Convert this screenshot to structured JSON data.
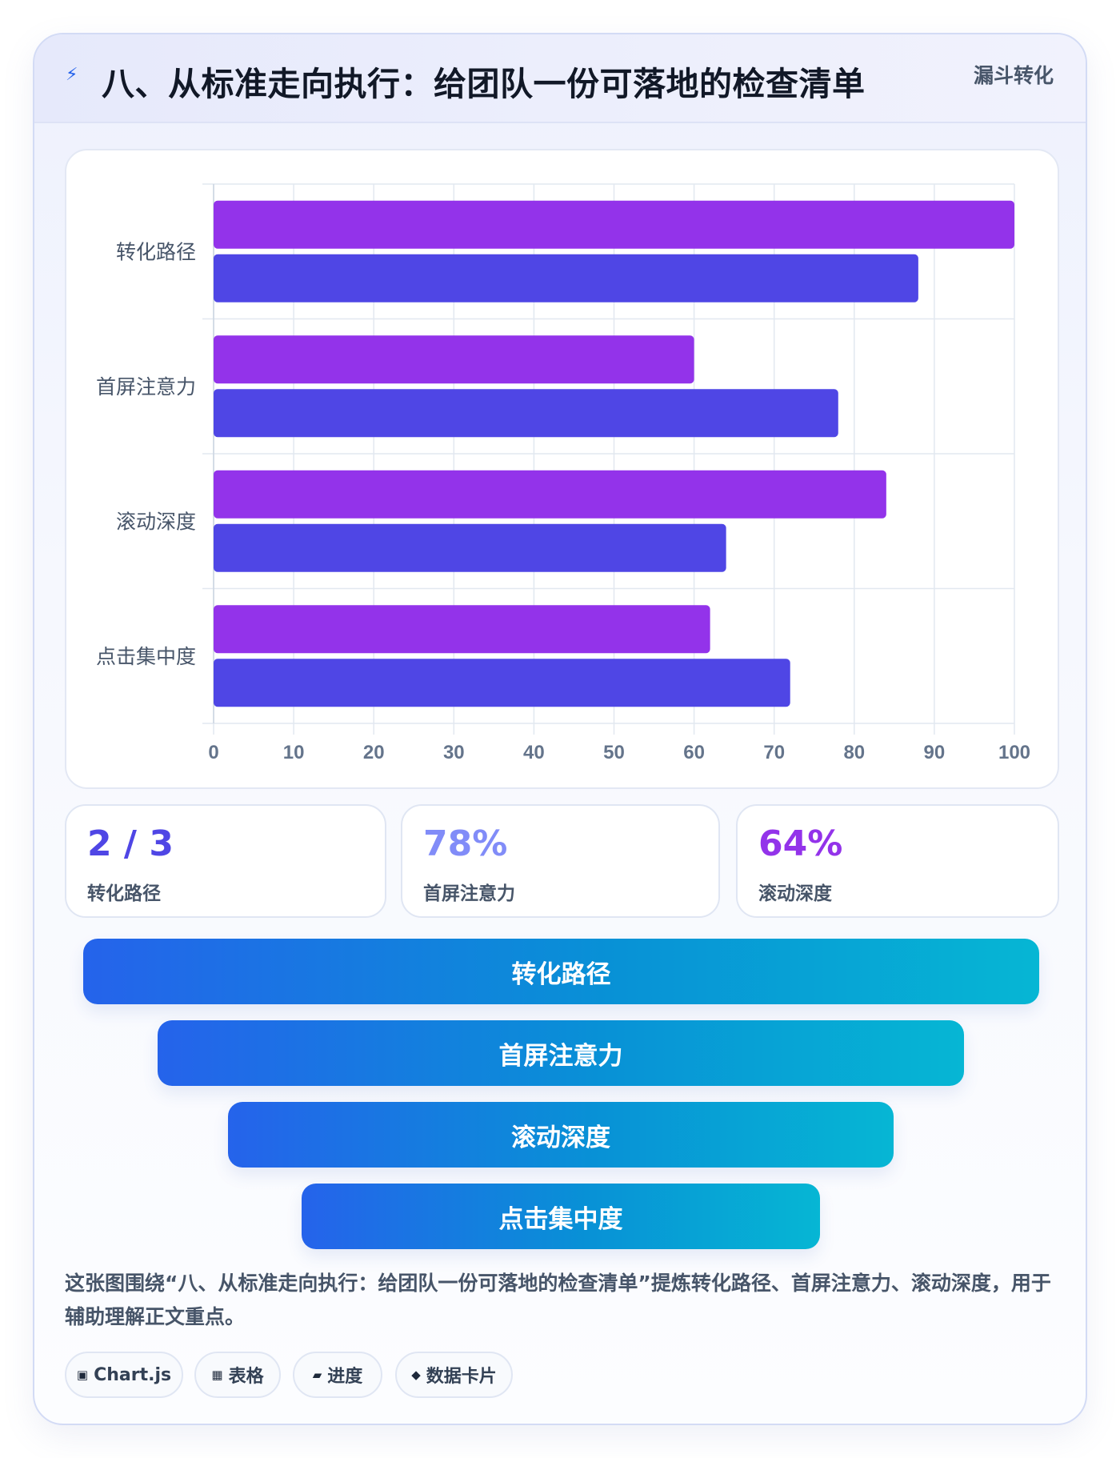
{
  "header": {
    "icon": "lightning-icon",
    "title": "八、从标准走向执行：给团队一份可落地的检查清单",
    "tag": "漏斗转化"
  },
  "chart_data": {
    "type": "bar",
    "orientation": "horizontal",
    "categories": [
      "转化路径",
      "首屏注意力",
      "滚动深度",
      "点击集中度"
    ],
    "series": [
      {
        "color": "#9333ea",
        "values": [
          100,
          60,
          84,
          62
        ]
      },
      {
        "color": "#4f46e5",
        "values": [
          88,
          78,
          64,
          72
        ]
      }
    ],
    "xlim": [
      0,
      100
    ],
    "xticks": [
      "0",
      "10",
      "20",
      "30",
      "40",
      "50",
      "60",
      "70",
      "80",
      "90",
      "100"
    ],
    "grid": true,
    "legend": "none"
  },
  "stats": [
    {
      "value": "2 / 3",
      "label": "转化路径",
      "color": "#4f46e5"
    },
    {
      "value": "78%",
      "label": "首屏注意力",
      "color": "#818cf8"
    },
    {
      "value": "64%",
      "label": "滚动深度",
      "color": "#9333ea"
    }
  ],
  "funnel": [
    "转化路径",
    "首屏注意力",
    "滚动深度",
    "点击集中度"
  ],
  "caption": "这张图围绕“八、从标准走向执行：给团队一份可落地的检查清单”提炼转化路径、首屏注意力、滚动深度，用于辅助理解正文重点。",
  "chips": [
    {
      "icon": "chart-icon",
      "glyph": "▣",
      "label": "Chart.js"
    },
    {
      "icon": "table-icon",
      "glyph": "▦",
      "label": "表格"
    },
    {
      "icon": "progress-icon",
      "glyph": "▰",
      "label": "进度"
    },
    {
      "icon": "diamond-icon",
      "glyph": "◆",
      "label": "数据卡片"
    }
  ]
}
